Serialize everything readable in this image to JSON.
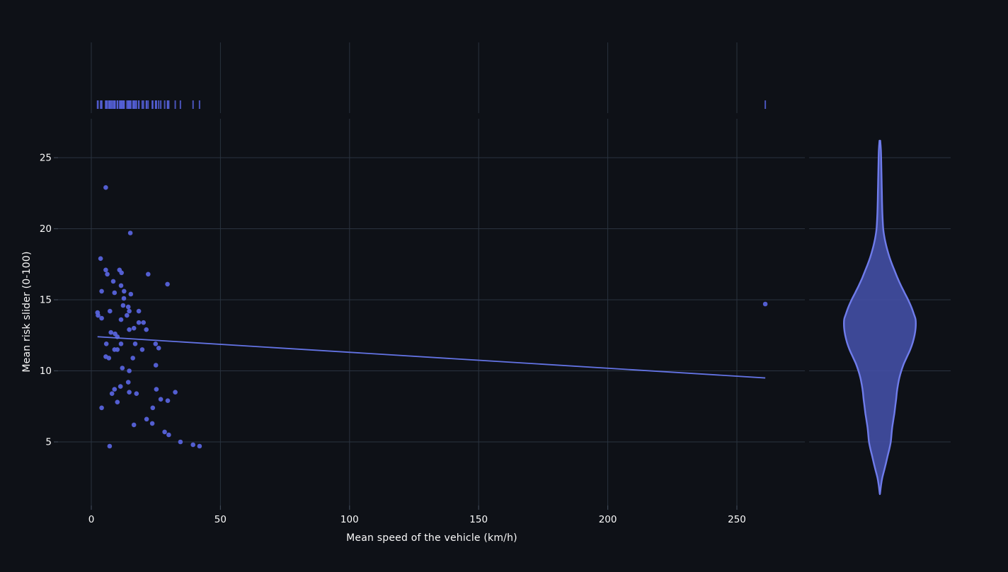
{
  "page": {
    "background_color": "#0e1117",
    "description": "Dark-theme seaborn jointplot: scatter with regression line, rug marginal on top, violin marginal on right"
  },
  "colors": {
    "background": "#0e1117",
    "grid": "#2a333f",
    "tick_mark": "#3c4654",
    "tick_text": "#fafafa",
    "axis_label_text": "#fafafa",
    "scatter": "#5763db",
    "regression_line": "#6373e4",
    "rug": "#5560d8",
    "violin_fill": "#4450a8",
    "violin_stroke": "#6f7ceb"
  },
  "chart_data": {
    "type": "scatter",
    "variant": "jointplot: scatter + regression line + top rug marginal + right violin marginal",
    "title": "",
    "xlabel": "Mean speed of the vehicle (km/h)",
    "ylabel": "Mean risk slider (0-100)",
    "x_ticks": [
      0,
      50,
      100,
      150,
      200,
      250
    ],
    "y_ticks": [
      5,
      10,
      15,
      20,
      25
    ],
    "xlim": [
      -13,
      276
    ],
    "ylim": [
      0.5,
      27.7
    ],
    "grid": true,
    "legend_position": "none",
    "points": [
      [
        5.6,
        22.9
      ],
      [
        15.1,
        19.7
      ],
      [
        3.6,
        17.9
      ],
      [
        5.6,
        17.1
      ],
      [
        6.2,
        16.8
      ],
      [
        10.9,
        17.1
      ],
      [
        11.7,
        16.9
      ],
      [
        22.0,
        16.8
      ],
      [
        8.5,
        16.3
      ],
      [
        11.5,
        16.0
      ],
      [
        29.5,
        16.1
      ],
      [
        4.0,
        15.6
      ],
      [
        9.0,
        15.5
      ],
      [
        12.7,
        15.6
      ],
      [
        15.3,
        15.4
      ],
      [
        12.6,
        15.1
      ],
      [
        12.3,
        14.6
      ],
      [
        14.3,
        14.5
      ],
      [
        14.7,
        14.2
      ],
      [
        7.2,
        14.2
      ],
      [
        2.4,
        14.1
      ],
      [
        18.4,
        14.2
      ],
      [
        2.6,
        13.9
      ],
      [
        4.0,
        13.7
      ],
      [
        11.5,
        13.6
      ],
      [
        13.8,
        13.9
      ],
      [
        18.4,
        13.4
      ],
      [
        20.2,
        13.4
      ],
      [
        14.7,
        12.9
      ],
      [
        16.5,
        13.0
      ],
      [
        21.3,
        12.9
      ],
      [
        7.6,
        12.7
      ],
      [
        9.2,
        12.6
      ],
      [
        10.1,
        12.4
      ],
      [
        5.8,
        11.9
      ],
      [
        11.5,
        11.9
      ],
      [
        17.0,
        11.9
      ],
      [
        24.9,
        11.9
      ],
      [
        9.0,
        11.5
      ],
      [
        10.1,
        11.5
      ],
      [
        19.7,
        11.5
      ],
      [
        26.1,
        11.6
      ],
      [
        5.6,
        11.0
      ],
      [
        6.8,
        10.9
      ],
      [
        16.1,
        10.9
      ],
      [
        12.0,
        10.2
      ],
      [
        14.7,
        10.0
      ],
      [
        25.0,
        10.4
      ],
      [
        14.3,
        9.2
      ],
      [
        11.3,
        8.9
      ],
      [
        9.0,
        8.7
      ],
      [
        8.0,
        8.4
      ],
      [
        14.7,
        8.5
      ],
      [
        17.5,
        8.4
      ],
      [
        25.2,
        8.7
      ],
      [
        32.5,
        8.5
      ],
      [
        26.9,
        8.0
      ],
      [
        29.6,
        7.9
      ],
      [
        10.1,
        7.8
      ],
      [
        23.8,
        7.4
      ],
      [
        4.0,
        7.4
      ],
      [
        21.4,
        6.6
      ],
      [
        23.6,
        6.3
      ],
      [
        16.5,
        6.2
      ],
      [
        28.4,
        5.7
      ],
      [
        30.0,
        5.5
      ],
      [
        34.5,
        5.0
      ],
      [
        39.4,
        4.8
      ],
      [
        41.9,
        4.7
      ],
      [
        7.1,
        4.7
      ],
      [
        261,
        14.7
      ]
    ],
    "regression_line": {
      "x1": 2.4,
      "y1": 12.4,
      "x2": 261,
      "y2": 9.5
    },
    "rug_marginal": "top axis; one vertical tick per point x value (including outlier at 261)",
    "violin_profile_y_density": [
      [
        26.2,
        0.01
      ],
      [
        25.5,
        0.03
      ],
      [
        24.0,
        0.044
      ],
      [
        23.0,
        0.052
      ],
      [
        22.0,
        0.06
      ],
      [
        21.0,
        0.072
      ],
      [
        20.0,
        0.094
      ],
      [
        19.5,
        0.12
      ],
      [
        19.0,
        0.16
      ],
      [
        18.5,
        0.21
      ],
      [
        18.0,
        0.27
      ],
      [
        17.5,
        0.34
      ],
      [
        17.0,
        0.42
      ],
      [
        16.5,
        0.5
      ],
      [
        16.0,
        0.59
      ],
      [
        15.5,
        0.69
      ],
      [
        15.0,
        0.79
      ],
      [
        14.5,
        0.88
      ],
      [
        14.0,
        0.95
      ],
      [
        13.6,
        1.0
      ],
      [
        13.0,
        1.0
      ],
      [
        12.5,
        0.97
      ],
      [
        12.0,
        0.92
      ],
      [
        11.5,
        0.85
      ],
      [
        11.0,
        0.76
      ],
      [
        10.5,
        0.67
      ],
      [
        10.0,
        0.6
      ],
      [
        9.5,
        0.545
      ],
      [
        9.0,
        0.505
      ],
      [
        8.5,
        0.475
      ],
      [
        8.0,
        0.455
      ],
      [
        7.5,
        0.43
      ],
      [
        7.0,
        0.405
      ],
      [
        6.5,
        0.375
      ],
      [
        6.0,
        0.345
      ],
      [
        5.5,
        0.325
      ],
      [
        5.0,
        0.305
      ],
      [
        4.5,
        0.265
      ],
      [
        4.0,
        0.215
      ],
      [
        3.5,
        0.17
      ],
      [
        3.0,
        0.12
      ],
      [
        2.5,
        0.07
      ],
      [
        2.0,
        0.035
      ],
      [
        1.4,
        0.006
      ]
    ]
  }
}
